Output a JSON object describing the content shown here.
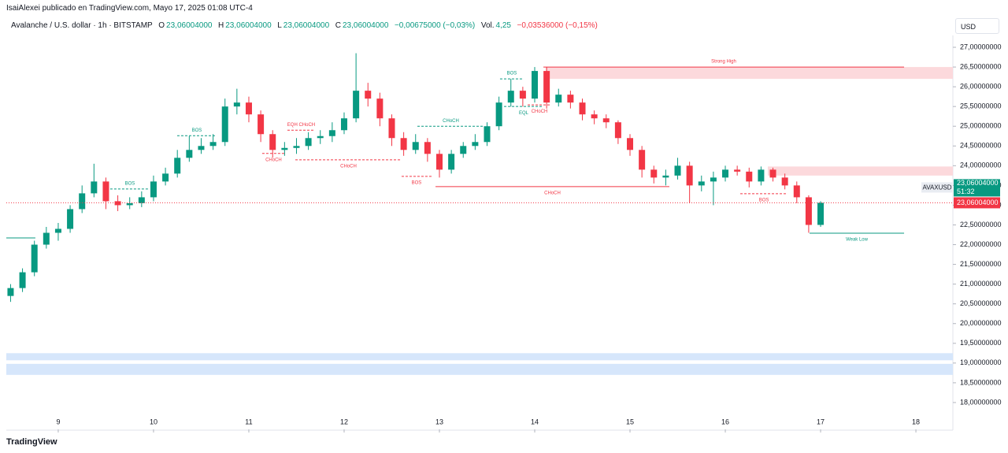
{
  "header": {
    "publisher": "IsaiAlexei publicado en TradingView.com, Mayo 17, 2025 01:08 UTC-4",
    "symbol": "Avalanche / U.S. dollar · 1h · BITSTAMP",
    "ohlc": [
      {
        "key": "O",
        "value": "23,06004000"
      },
      {
        "key": "H",
        "value": "23,06004000"
      },
      {
        "key": "L",
        "value": "23,06004000"
      },
      {
        "key": "C",
        "value": "23,06004000"
      }
    ],
    "change": "−0,00675000 (−0,03%)",
    "volume_key": "Vol.",
    "volume": "4,25",
    "volume_change": "−0,03536000 (−0,15%)",
    "currency": "USD",
    "logo": "TradingView"
  },
  "chart_data": {
    "type": "candlestick",
    "up_color": "#089981",
    "down_color": "#f23645",
    "x": [
      8.5,
      8.625,
      8.75,
      8.875,
      9,
      9.125,
      9.25,
      9.375,
      9.5,
      9.625,
      9.75,
      9.875,
      10,
      10.125,
      10.25,
      10.375,
      10.5,
      10.625,
      10.75,
      10.875,
      11,
      11.125,
      11.25,
      11.375,
      11.5,
      11.625,
      11.75,
      11.875,
      12,
      12.125,
      12.25,
      12.375,
      12.5,
      12.625,
      12.75,
      12.875,
      13,
      13.125,
      13.25,
      13.375,
      13.5,
      13.625,
      13.75,
      13.875,
      14,
      14.125,
      14.25,
      14.375,
      14.5,
      14.625,
      14.75,
      14.875,
      15,
      15.125,
      15.25,
      15.375,
      15.5,
      15.625,
      15.75,
      15.875,
      16,
      16.125,
      16.25,
      16.375,
      16.5,
      16.625,
      16.75,
      16.875,
      17
    ],
    "open": [
      20.7,
      20.9,
      21.3,
      22.0,
      22.3,
      22.4,
      22.9,
      23.3,
      23.6,
      23.1,
      23.0,
      23.05,
      23.2,
      23.6,
      23.8,
      24.2,
      24.4,
      24.5,
      24.6,
      25.5,
      25.6,
      25.3,
      24.8,
      24.4,
      24.45,
      24.5,
      24.7,
      24.75,
      24.9,
      25.2,
      25.9,
      25.7,
      25.2,
      24.7,
      24.4,
      24.6,
      24.3,
      23.9,
      24.3,
      24.5,
      24.6,
      25.0,
      25.6,
      25.9,
      25.7,
      26.4,
      25.6,
      25.8,
      25.6,
      25.3,
      25.2,
      25.1,
      24.7,
      24.4,
      23.9,
      23.7,
      23.75,
      24.0,
      23.5,
      23.6,
      23.7,
      23.9,
      23.85,
      23.6,
      23.9,
      23.7,
      23.5,
      23.2,
      22.5
    ],
    "high": [
      21.0,
      21.4,
      22.1,
      22.45,
      22.55,
      23.0,
      23.5,
      24.05,
      23.7,
      23.25,
      23.2,
      23.35,
      23.75,
      23.95,
      24.4,
      24.75,
      24.7,
      24.8,
      25.7,
      25.95,
      25.75,
      25.4,
      24.9,
      24.6,
      24.7,
      24.85,
      24.9,
      25.1,
      25.35,
      26.85,
      26.1,
      25.85,
      25.3,
      24.85,
      24.8,
      24.7,
      24.4,
      24.4,
      24.6,
      24.8,
      25.1,
      25.75,
      26.2,
      26.0,
      26.5,
      26.5,
      25.95,
      25.9,
      25.7,
      25.4,
      25.3,
      25.15,
      24.8,
      24.5,
      24.0,
      23.9,
      24.2,
      24.1,
      23.75,
      23.85,
      24.0,
      24.0,
      23.95,
      23.98,
      23.95,
      23.8,
      23.6,
      23.25,
      23.1
    ],
    "low": [
      20.55,
      20.8,
      21.2,
      21.9,
      22.1,
      22.3,
      22.8,
      23.2,
      22.9,
      22.85,
      22.9,
      22.95,
      23.1,
      23.5,
      23.7,
      24.1,
      24.3,
      24.4,
      24.5,
      25.3,
      25.1,
      24.6,
      24.2,
      24.25,
      24.3,
      24.4,
      24.55,
      24.6,
      24.8,
      25.1,
      25.5,
      25.0,
      24.5,
      24.25,
      24.3,
      24.1,
      23.7,
      23.8,
      24.2,
      24.4,
      24.5,
      24.9,
      25.5,
      25.5,
      25.6,
      25.45,
      25.5,
      25.45,
      25.15,
      25.05,
      24.95,
      24.55,
      24.25,
      23.7,
      23.55,
      23.5,
      23.65,
      23.05,
      23.35,
      23.0,
      23.6,
      23.75,
      23.45,
      23.5,
      23.6,
      23.4,
      23.05,
      22.3,
      22.45
    ],
    "close": [
      20.9,
      21.3,
      22.0,
      22.3,
      22.4,
      22.9,
      23.3,
      23.6,
      23.1,
      23.0,
      23.05,
      23.2,
      23.6,
      23.8,
      24.2,
      24.4,
      24.5,
      24.6,
      25.5,
      25.6,
      25.3,
      24.8,
      24.4,
      24.45,
      24.5,
      24.7,
      24.75,
      24.9,
      25.2,
      25.9,
      25.7,
      25.2,
      24.7,
      24.4,
      24.6,
      24.3,
      23.9,
      24.3,
      24.5,
      24.6,
      25.0,
      25.6,
      25.9,
      25.7,
      26.4,
      25.6,
      25.8,
      25.6,
      25.3,
      25.2,
      25.1,
      24.7,
      24.4,
      23.9,
      23.7,
      23.75,
      24.0,
      23.5,
      23.6,
      23.7,
      23.9,
      23.85,
      23.6,
      23.9,
      23.7,
      23.5,
      23.2,
      22.5,
      23.06
    ],
    "xlim": [
      8.455,
      18.388
    ],
    "ylim": [
      17.32,
      27.3
    ],
    "xticks": [
      9,
      10,
      11,
      12,
      13,
      14,
      15,
      16,
      17,
      18
    ],
    "yticks": [
      {
        "value": 27,
        "label": "27,00000000"
      },
      {
        "value": 26.5,
        "label": "26,50000000"
      },
      {
        "value": 26,
        "label": "26,00000000"
      },
      {
        "value": 25.5,
        "label": "25,50000000"
      },
      {
        "value": 25,
        "label": "25,00000000"
      },
      {
        "value": 24.5,
        "label": "24,50000000"
      },
      {
        "value": 24,
        "label": "24,00000000"
      },
      {
        "value": 23.5,
        "label": "23,50000000"
      },
      {
        "value": 23,
        "label": "23,00000000"
      },
      {
        "value": 22.5,
        "label": "22,50000000"
      },
      {
        "value": 22,
        "label": "22,00000000"
      },
      {
        "value": 21.5,
        "label": "21,50000000"
      },
      {
        "value": 21,
        "label": "21,00000000"
      },
      {
        "value": 20.5,
        "label": "20,50000000"
      },
      {
        "value": 20,
        "label": "20,00000000"
      },
      {
        "value": 19.5,
        "label": "19,50000000"
      },
      {
        "value": 19,
        "label": "19,00000000"
      },
      {
        "value": 18.5,
        "label": "18,50000000"
      },
      {
        "value": 18,
        "label": "18,00000000"
      }
    ],
    "grid": false,
    "last_price": {
      "value": 23.06004,
      "symbol": "AVAXUSD",
      "label": "23,06004000",
      "countdown": "51:32"
    },
    "zones": [
      {
        "x0": 14.116,
        "x1": 18.388,
        "y0": 26.2,
        "y1": 26.5,
        "color": "#fcd9dc"
      },
      {
        "x0": 16.446,
        "x1": 18.388,
        "y0": 23.75,
        "y1": 23.98,
        "color": "#fcd9dc"
      },
      {
        "x0": 8.455,
        "x1": 18.388,
        "y0": 19.07,
        "y1": 19.25,
        "color": "#d6e6fb"
      },
      {
        "x0": 8.455,
        "x1": 18.388,
        "y0": 18.7,
        "y1": 18.98,
        "color": "#d6e6fb"
      }
    ],
    "structure": [
      {
        "x0": 8.455,
        "x1": 8.76,
        "y": 22.17,
        "color": "#089981",
        "dashed": false
      },
      {
        "label": "BOS",
        "x0": 9.545,
        "x1": 9.959,
        "y": 23.41,
        "color": "#089981",
        "dashed": true,
        "position": "above"
      },
      {
        "label": "BOS",
        "x0": 10.248,
        "x1": 10.661,
        "y": 24.76,
        "color": "#089981",
        "dashed": true,
        "position": "above"
      },
      {
        "label": "CHoCH",
        "x0": 11.14,
        "x1": 11.38,
        "y": 24.31,
        "color": "#f23645",
        "dashed": true,
        "position": "below"
      },
      {
        "label": "EQH CHoCH",
        "x0": 11.405,
        "x1": 11.694,
        "y": 24.9,
        "color": "#f23645",
        "dashed": true,
        "position": "above"
      },
      {
        "label": "CHoCH",
        "x0": 11.488,
        "x1": 12.603,
        "y": 24.15,
        "color": "#f23645",
        "dashed": true,
        "position": "below"
      },
      {
        "label": "BOS",
        "x0": 12.603,
        "x1": 12.917,
        "y": 23.73,
        "color": "#f23645",
        "dashed": true,
        "position": "below"
      },
      {
        "label": "CHoCH",
        "x0": 12.769,
        "x1": 13.471,
        "y": 25.0,
        "color": "#089981",
        "dashed": true,
        "position": "above"
      },
      {
        "label": "CHoCH",
        "x0": 12.959,
        "x1": 15.413,
        "y": 23.47,
        "color": "#f23645",
        "dashed": false,
        "position": "below"
      },
      {
        "label": "BOS",
        "x0": 13.636,
        "x1": 13.884,
        "y": 26.2,
        "color": "#089981",
        "dashed": true,
        "position": "above"
      },
      {
        "label": "EQL",
        "x0": 13.678,
        "x1": 14.091,
        "y": 25.5,
        "color": "#089981",
        "dashed": true,
        "position": "below"
      },
      {
        "label": "CHoCH",
        "x0": 13.926,
        "x1": 14.174,
        "y": 25.54,
        "color": "#f23645",
        "dashed": true,
        "position": "below"
      },
      {
        "label": "BOS",
        "x0": 16.157,
        "x1": 16.653,
        "y": 23.29,
        "color": "#f23645",
        "dashed": true,
        "position": "below"
      },
      {
        "label": "Strong High",
        "x0": 14.091,
        "x1": 17.876,
        "y": 26.5,
        "color": "#f23645",
        "dashed": false,
        "position": "above"
      },
      {
        "label": "Weak Low",
        "x0": 16.884,
        "x1": 17.876,
        "y": 22.29,
        "color": "#089981",
        "dashed": false,
        "position": "below"
      }
    ]
  }
}
